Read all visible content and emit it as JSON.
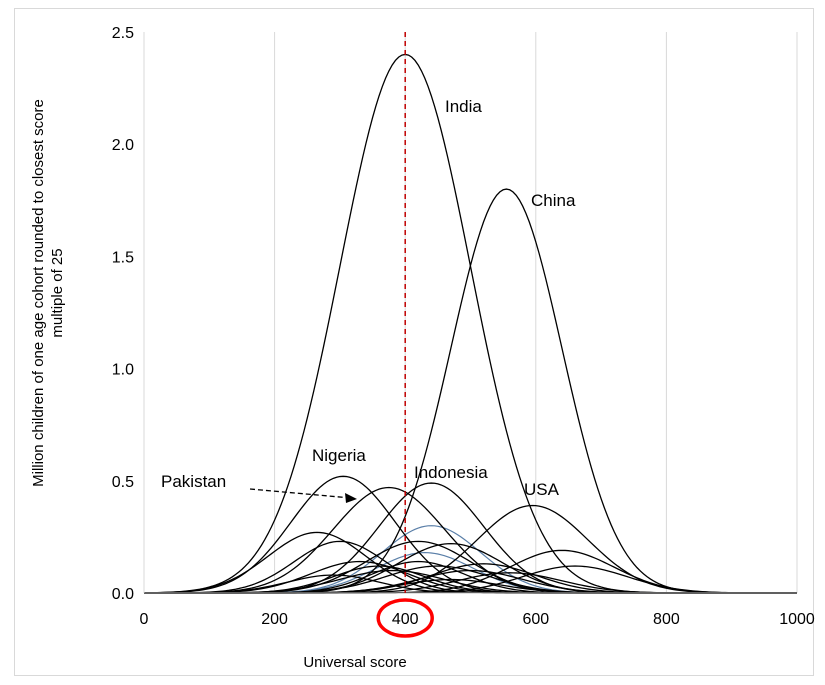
{
  "chart_data": {
    "type": "line",
    "title": "",
    "xlabel": "Universal score",
    "ylabel_lines": [
      "Million children of one age cohort rounded to closest score",
      "multiple of 25"
    ],
    "xlim": [
      0,
      1000
    ],
    "ylim": [
      0,
      2.5
    ],
    "x_ticks": [
      "0",
      "200",
      "400",
      "600",
      "800",
      "1000"
    ],
    "y_ticks": [
      "0.0",
      "0.5",
      "1.0",
      "1.5",
      "2.0",
      "2.5"
    ],
    "grid": "vertical",
    "reference_line": {
      "x": 400,
      "style": "dashed",
      "color": "#c00000"
    },
    "highlight_tick": {
      "label": "400",
      "color": "#ff0000",
      "shape": "circle"
    },
    "series": [
      {
        "name": "India",
        "mean": 400,
        "sd": 100,
        "peak": 2.4
      },
      {
        "name": "China",
        "mean": 555,
        "sd": 85,
        "peak": 1.8
      },
      {
        "name": "Nigeria",
        "mean": 305,
        "sd": 80,
        "peak": 0.52
      },
      {
        "name": "Pakistan",
        "mean": 375,
        "sd": 85,
        "peak": 0.47
      },
      {
        "name": "Indonesia",
        "mean": 440,
        "sd": 80,
        "peak": 0.49
      },
      {
        "name": "USA",
        "mean": 595,
        "sd": 85,
        "peak": 0.39
      },
      {
        "mean": 265,
        "sd": 75,
        "peak": 0.27
      },
      {
        "mean": 300,
        "sd": 70,
        "peak": 0.23
      },
      {
        "mean": 420,
        "sd": 80,
        "peak": 0.23
      },
      {
        "mean": 470,
        "sd": 80,
        "peak": 0.22
      },
      {
        "mean": 640,
        "sd": 80,
        "peak": 0.19
      },
      {
        "mean": 660,
        "sd": 80,
        "peak": 0.12
      },
      {
        "mean": 330,
        "sd": 75,
        "peak": 0.14
      },
      {
        "mean": 360,
        "sd": 70,
        "peak": 0.12
      },
      {
        "mean": 380,
        "sd": 80,
        "peak": 0.1
      },
      {
        "mean": 420,
        "sd": 70,
        "peak": 0.14
      },
      {
        "mean": 450,
        "sd": 80,
        "peak": 0.12
      },
      {
        "mean": 500,
        "sd": 80,
        "peak": 0.1
      },
      {
        "mean": 520,
        "sd": 80,
        "peak": 0.13
      },
      {
        "mean": 560,
        "sd": 80,
        "peak": 0.09
      },
      {
        "mean": 290,
        "sd": 70,
        "peak": 0.08
      },
      {
        "mean": 470,
        "sd": 75,
        "peak": 0.06
      }
    ],
    "blue_series": [
      {
        "mean": 440,
        "sd": 75,
        "peak": 0.3,
        "color": "#5a7fa8"
      },
      {
        "mean": 430,
        "sd": 75,
        "peak": 0.18,
        "color": "#5a7fa8"
      }
    ],
    "annotations": [
      {
        "text": "India",
        "series": "India"
      },
      {
        "text": "China",
        "series": "China"
      },
      {
        "text": "Nigeria",
        "series": "Nigeria"
      },
      {
        "text": "Pakistan",
        "series": "Pakistan",
        "arrow": true
      },
      {
        "text": "Indonesia",
        "series": "Indonesia"
      },
      {
        "text": "USA",
        "series": "USA"
      }
    ]
  }
}
